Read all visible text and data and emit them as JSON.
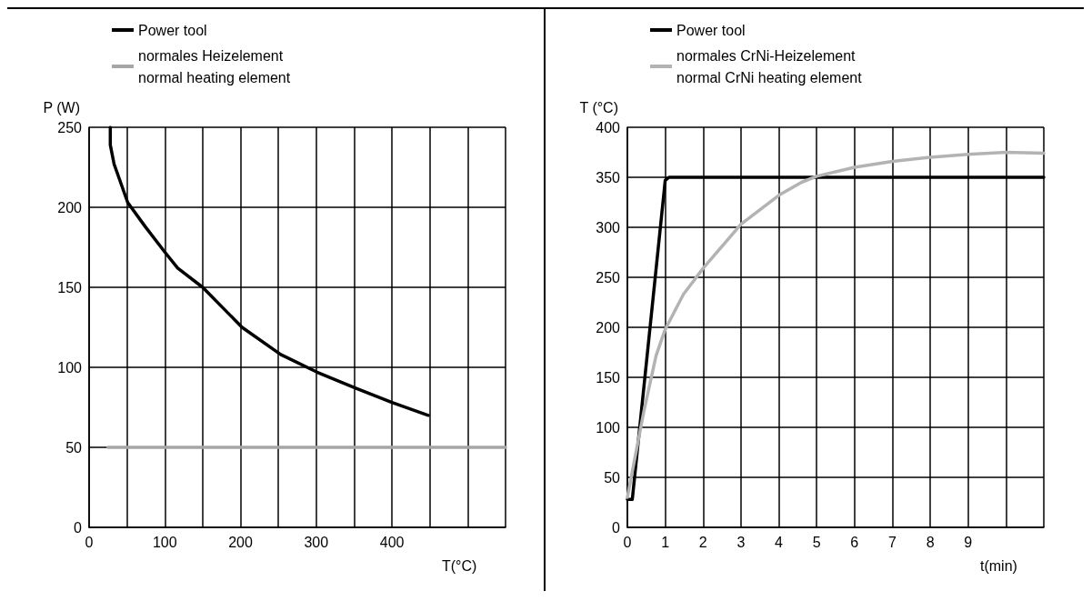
{
  "chart_data": [
    {
      "type": "line",
      "xlabel": "T(°C)",
      "ylabel": "P (W)",
      "xlim": [
        0,
        550
      ],
      "ylim": [
        0,
        250
      ],
      "xticks": [
        0,
        {
          "value": 50,
          "label": null
        },
        100,
        {
          "value": 150,
          "label": null
        },
        200,
        {
          "value": 250,
          "label": null
        },
        300,
        {
          "value": 350,
          "label": null
        },
        400,
        {
          "value": 450,
          "label": null
        },
        {
          "value": 500,
          "label": null
        },
        {
          "value": 550,
          "label": null
        }
      ],
      "yticks": [
        0,
        50,
        100,
        150,
        200,
        250
      ],
      "grid": true,
      "legend": "top left",
      "marker": "none",
      "line_style": "solid",
      "series": [
        {
          "name": "Power tool",
          "color": "#000000",
          "x": [
            28,
            28,
            33,
            51,
            74,
            100,
            117,
            150,
            202,
            253,
            301,
            352,
            400,
            448
          ],
          "values": [
            250,
            239,
            227,
            203,
            188,
            172,
            162,
            150,
            125,
            108,
            97,
            87,
            78,
            70
          ]
        },
        {
          "name": "normales Heizelement\nnormal heating element",
          "color": "#a6a6a6",
          "x": [
            25,
            550
          ],
          "values": [
            50,
            50
          ]
        }
      ]
    },
    {
      "type": "line",
      "xlabel": "t(min)",
      "ylabel": "T (°C)",
      "xlim": [
        0,
        11
      ],
      "ylim": [
        0,
        400
      ],
      "xticks": [
        0,
        1,
        2,
        3,
        4,
        5,
        6,
        7,
        8,
        9,
        {
          "value": 10,
          "label": null
        },
        {
          "value": 11,
          "label": null
        }
      ],
      "yticks": [
        0,
        50,
        100,
        150,
        200,
        250,
        300,
        350,
        400
      ],
      "grid": true,
      "legend": "top left",
      "marker": "none",
      "line_style": "solid",
      "series": [
        {
          "name": "Power tool",
          "color": "#000000",
          "x": [
            0,
            0.13,
            1,
            1.1,
            1.5,
            11
          ],
          "values": [
            28,
            28,
            347,
            350,
            350,
            350
          ]
        },
        {
          "name": "normales CrNi-Heizelement\nnormal CrNi heating element",
          "color": "#b3b3b3",
          "x": [
            0,
            0.43,
            0.76,
            1,
            1.48,
            2,
            3,
            4,
            4.6,
            5,
            6,
            7,
            8,
            9,
            10,
            11
          ],
          "values": [
            30,
            115,
            172,
            198,
            233,
            259,
            303,
            332,
            345,
            351,
            360,
            366,
            370,
            373,
            375,
            374
          ]
        }
      ]
    }
  ]
}
